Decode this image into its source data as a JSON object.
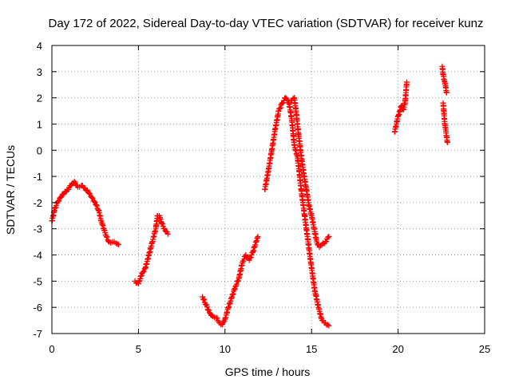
{
  "chart_data": {
    "type": "scatter",
    "title": "Day 172 of 2022, Sidereal Day-to-day VTEC variation (SDTVAR) for receiver kunz",
    "xlabel": "GPS time / hours",
    "ylabel": "SDTVAR / TECUs",
    "xlim": [
      0,
      25
    ],
    "ylim": [
      -7,
      4
    ],
    "xticks": [
      0,
      5,
      10,
      15,
      20,
      25
    ],
    "yticks": [
      -7,
      -6,
      -5,
      -4,
      -3,
      -2,
      -1,
      0,
      1,
      2,
      3,
      4
    ],
    "grid": true,
    "marker": "+",
    "color": "#ff0000",
    "segments": [
      {
        "x": [
          0.0,
          0.15,
          0.3,
          0.5,
          0.7,
          0.9,
          1.1,
          1.3,
          1.5,
          1.7,
          1.9,
          2.1,
          2.3,
          2.5,
          2.7,
          2.85,
          3.0,
          3.15,
          3.3,
          3.5,
          3.7,
          3.85
        ],
        "y": [
          -2.7,
          -2.3,
          -2.0,
          -1.8,
          -1.65,
          -1.5,
          -1.35,
          -1.2,
          -1.4,
          -1.35,
          -1.45,
          -1.6,
          -1.8,
          -2.0,
          -2.3,
          -2.7,
          -3.0,
          -3.3,
          -3.5,
          -3.5,
          -3.55,
          -3.6
        ]
      },
      {
        "x": [
          4.8,
          5.0,
          5.2,
          5.4,
          5.6,
          5.8,
          6.0,
          6.1,
          6.2,
          6.35,
          6.5,
          6.7
        ],
        "y": [
          -5.0,
          -5.1,
          -4.7,
          -4.5,
          -4.0,
          -3.5,
          -3.0,
          -2.5,
          -2.5,
          -2.8,
          -3.0,
          -3.2
        ]
      },
      {
        "x": [
          8.7,
          8.9,
          9.1,
          9.3,
          9.5,
          9.7,
          9.85,
          10.0,
          10.2,
          10.4,
          10.6,
          10.8,
          11.0,
          11.2,
          11.4,
          11.6,
          11.8,
          11.9
        ],
        "y": [
          -5.6,
          -5.9,
          -6.2,
          -6.35,
          -6.4,
          -6.6,
          -6.65,
          -6.45,
          -6.0,
          -5.6,
          -5.2,
          -4.9,
          -4.3,
          -4.0,
          -4.2,
          -3.9,
          -3.5,
          -3.3
        ]
      },
      {
        "x": [
          12.3,
          12.5,
          12.7,
          12.9,
          13.1,
          13.3,
          13.5,
          13.7,
          13.85,
          14.0,
          14.2,
          14.4,
          14.6,
          14.8,
          15.0,
          15.2,
          15.4,
          15.6,
          15.8,
          16.0
        ],
        "y": [
          -1.5,
          -0.8,
          0.0,
          0.8,
          1.5,
          1.8,
          2.0,
          1.8,
          1.2,
          0.2,
          -0.3,
          -1.5,
          -2.5,
          -3.5,
          -4.5,
          -5.4,
          -6.0,
          -6.5,
          -6.6,
          -6.7
        ]
      },
      {
        "x": [
          13.8,
          14.0,
          14.1,
          14.25,
          14.4,
          14.55,
          14.7,
          14.85,
          15.0,
          15.15,
          15.3,
          15.45,
          15.6,
          15.8,
          16.0
        ],
        "y": [
          1.9,
          2.0,
          1.5,
          0.6,
          -0.2,
          -0.9,
          -1.5,
          -2.1,
          -2.5,
          -3.0,
          -3.5,
          -3.7,
          -3.6,
          -3.5,
          -3.3
        ]
      },
      {
        "x": [
          19.8,
          19.9,
          20.0,
          20.1,
          20.2,
          20.3,
          20.4,
          20.5
        ],
        "y": [
          0.7,
          1.0,
          1.3,
          1.5,
          1.7,
          1.55,
          1.8,
          2.6
        ]
      },
      {
        "x": [
          22.55,
          22.6,
          22.65,
          22.7,
          22.75,
          22.8
        ],
        "y": [
          3.2,
          2.9,
          2.7,
          2.6,
          2.4,
          2.2
        ]
      },
      {
        "x": [
          22.6,
          22.65,
          22.7,
          22.75,
          22.8,
          22.85
        ],
        "y": [
          1.8,
          1.4,
          1.0,
          0.8,
          0.5,
          0.3
        ]
      }
    ]
  }
}
